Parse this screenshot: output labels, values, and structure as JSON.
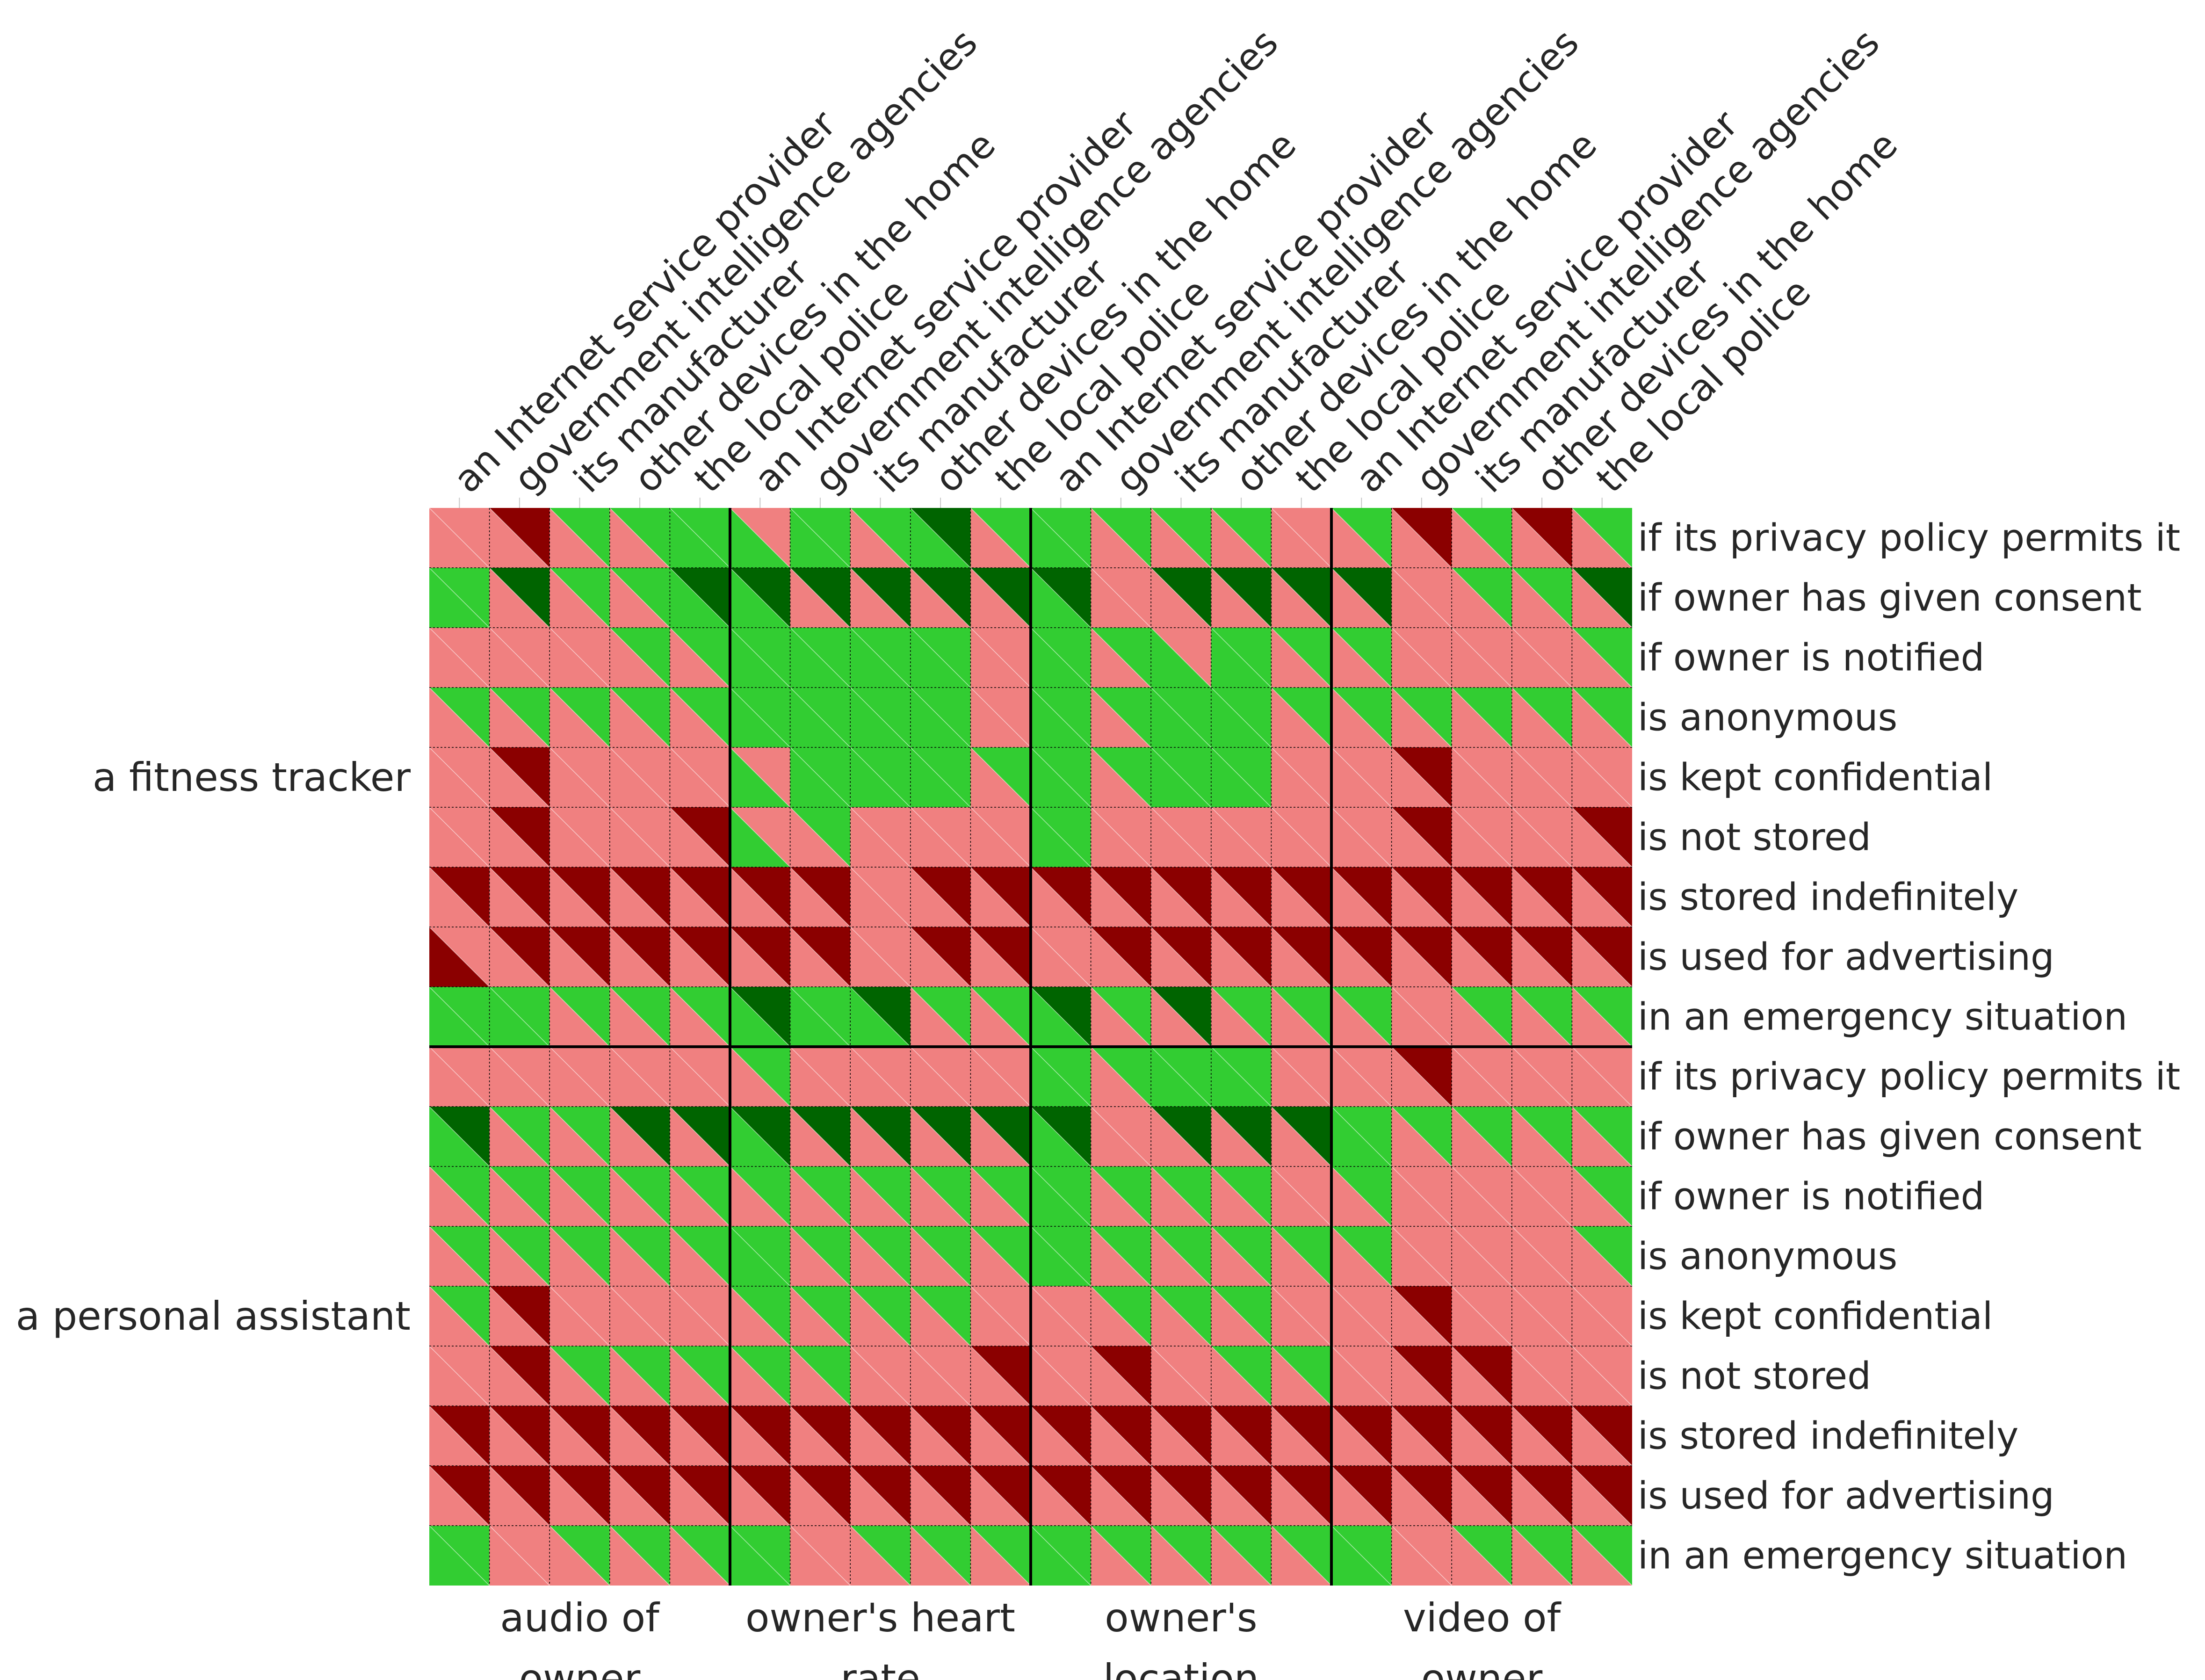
{
  "chart_data": {
    "type": "heatmap",
    "title": "",
    "cell_style": "each cell split by its diagonal into two triangles: upper-right triangle and lower-left triangle carry two separate ratings",
    "palette": {
      "0": "#f08080",
      "1": "#8b0000",
      "2": "#32cd32",
      "3": "#006400"
    },
    "column_groups": [
      "audio of owner",
      "owner's heart rate",
      "owner's location",
      "video of owner"
    ],
    "column_labels": [
      "an Internet service provider",
      "government intelligence agencies",
      "its manufacturer",
      "other devices in the home",
      "the local police"
    ],
    "row_groups": [
      "a fitness tracker",
      "a personal assistant"
    ],
    "row_labels": [
      "if its privacy policy permits it",
      "if owner has given consent",
      "if owner is notified",
      "is anonymous",
      "is kept confidential",
      "is not stored",
      "is stored indefinitely",
      "is used for advertising",
      "in an emergency situation"
    ],
    "upper_triangles": [
      "01222 02232 22220 21212",
      "23223 33333 30333 30223",
      "00022 22220 22022 20002",
      "22222 22220 22222 22222",
      "01000 02222 22220 01000",
      "01001 02000 20000 01001",
      "11111 11011 11111 11111",
      "01111 11011 01111 11111",
      "22222 32322 32322 20222",
      "00000 20000 22220 01000",
      "32233 33333 30333 22222",
      "22222 22222 22220 20002",
      "22222 22222 22222 20002",
      "21000 22220 02220 01000",
      "01222 22001 01022 01100",
      "11111 11111 11111 11111",
      "11111 11111 11111 11111",
      "20222 20222 22222 20222"
    ],
    "lower_triangles": [
      "00002 22020 20000 00000",
      "20002 20000 20000 00000",
      "00000 22220 20220 00000",
      "00000 22220 20220 00000",
      "00000 22220 20220 00000",
      "00000 20000 20000 00000",
      "00000 00000 00000 00000",
      "10000 00000 00000 00000",
      "22000 22200 20000 00000",
      "00000 00000 20220 00000",
      "20000 20000 20000 20000",
      "00000 00000 20000 00000",
      "00000 20000 20000 00000",
      "00000 00000 00000 00000",
      "00000 00000 00000 00000",
      "00000 00000 00000 00000",
      "00000 00000 00000 00000",
      "20000 20000 20000 20000"
    ]
  }
}
